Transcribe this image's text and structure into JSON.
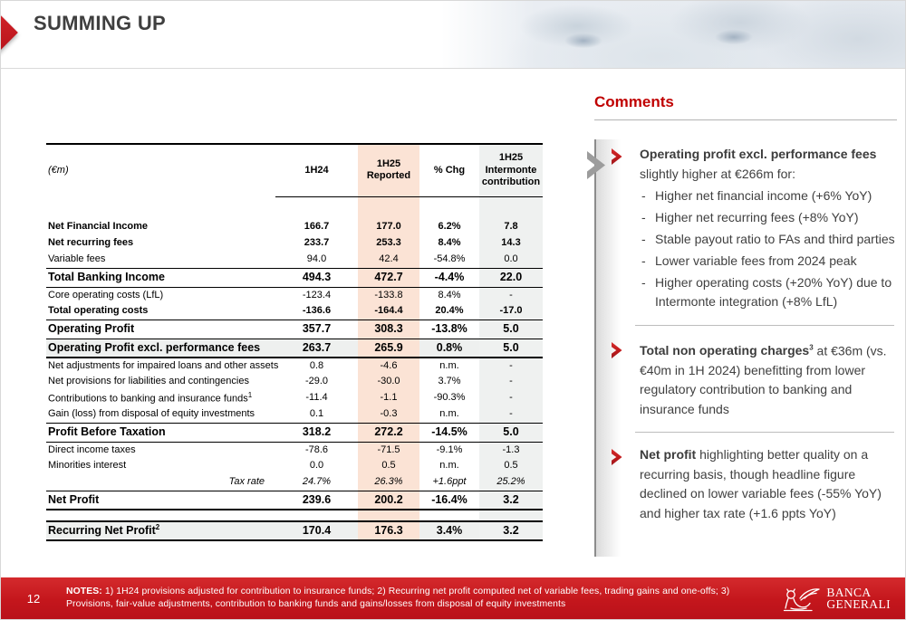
{
  "slide": {
    "title": "SUMMING UP",
    "page_number": "12"
  },
  "table": {
    "unit_label": "(€m)",
    "columns": [
      "1H24",
      "1H25 Reported",
      "% Chg",
      "1H25 Intermonte contribution"
    ],
    "rows": [
      {
        "label": "Net Financial Income",
        "values": [
          "166.7",
          "177.0",
          "6.2%",
          "7.8"
        ],
        "style": "bold"
      },
      {
        "label": "Net recurring fees",
        "values": [
          "233.7",
          "253.3",
          "8.4%",
          "14.3"
        ],
        "style": "bold"
      },
      {
        "label": "Variable fees",
        "values": [
          "94.0",
          "42.4",
          "-54.8%",
          "0.0"
        ],
        "style": ""
      },
      {
        "label": "Total Banking Income",
        "values": [
          "494.3",
          "472.7",
          "-4.4%",
          "22.0"
        ],
        "style": "big bt bb"
      },
      {
        "label": "Core operating costs (LfL)",
        "values": [
          "-123.4",
          "-133.8",
          "8.4%",
          "-"
        ],
        "style": ""
      },
      {
        "label": "Total operating costs",
        "values": [
          "-136.6",
          "-164.4",
          "20.4%",
          "-17.0"
        ],
        "style": "bold"
      },
      {
        "label": "Operating Profit",
        "values": [
          "357.7",
          "308.3",
          "-13.8%",
          "5.0"
        ],
        "style": "big bt bb"
      },
      {
        "label": "Operating Profit excl. performance fees",
        "values": [
          "263.7",
          "265.9",
          "0.8%",
          "5.0"
        ],
        "style": "big grayrow bb2"
      },
      {
        "label": "Net adjustments for impaired loans and other assets",
        "values": [
          "0.8",
          "-4.6",
          "n.m.",
          "-"
        ],
        "style": ""
      },
      {
        "label": "Net provisions for liabilities and contingencies",
        "values": [
          "-29.0",
          "-30.0",
          "3.7%",
          "-"
        ],
        "style": ""
      },
      {
        "label": "Contributions to banking and insurance funds",
        "sup": "1",
        "values": [
          "-11.4",
          "-1.1",
          "-90.3%",
          "-"
        ],
        "style": ""
      },
      {
        "label": "Gain (loss) from disposal of equity investments",
        "values": [
          "0.1",
          "-0.3",
          "n.m.",
          "-"
        ],
        "style": ""
      },
      {
        "label": "Profit Before Taxation",
        "values": [
          "318.2",
          "272.2",
          "-14.5%",
          "5.0"
        ],
        "style": "big bt bb"
      },
      {
        "label": "Direct income taxes",
        "values": [
          "-78.6",
          "-71.5",
          "-9.1%",
          "-1.3"
        ],
        "style": ""
      },
      {
        "label": "Minorities interest",
        "values": [
          "0.0",
          "0.5",
          "n.m.",
          "0.5"
        ],
        "style": ""
      },
      {
        "label": "Tax rate",
        "values": [
          "24.7%",
          "26.3%",
          "+1.6ppt",
          "25.2%"
        ],
        "style": "italic rightlbl"
      },
      {
        "label": "Net Profit",
        "values": [
          "239.6",
          "200.2",
          "-16.4%",
          "3.2"
        ],
        "style": "big bt bb2"
      },
      {
        "label": "",
        "values": [
          "",
          "",
          "",
          ""
        ],
        "style": "gap"
      },
      {
        "label": "Recurring Net Profit",
        "sup": "2",
        "values": [
          "170.4",
          "176.3",
          "3.4%",
          "3.2"
        ],
        "style": "big grayrow bt2 bb2"
      }
    ]
  },
  "comments": {
    "title": "Comments",
    "bullet_marker": "-",
    "items": [
      {
        "lead": "Operating profit excl. performance fees",
        "lead_sup": "",
        "text": " slightly higher at €266m for:",
        "bullets": [
          "Higher net financial income (+6% YoY)",
          "Higher net recurring fees (+8% YoY)",
          "Stable payout ratio to FAs and third parties",
          "Lower variable fees from 2024 peak",
          "Higher operating costs (+20% YoY) due to Intermonte integration (+8% LfL)"
        ]
      },
      {
        "lead": "Total non operating charges",
        "lead_sup": "3",
        "text": " at €36m (vs. €40m in 1H 2024) benefitting from lower regulatory contribution to banking and insurance funds",
        "bullets": []
      },
      {
        "lead": "Net profit",
        "lead_sup": "",
        "text": " highlighting better quality on a recurring basis, though headline figure declined on lower variable fees (-55% YoY) and higher tax rate (+1.6 ppts YoY)",
        "bullets": []
      }
    ]
  },
  "footer": {
    "notes_label": "NOTES:",
    "notes": " 1) 1H24 provisions adjusted for contribution to insurance funds; 2) Recurring net profit computed net of variable fees, trading gains and one-offs; 3) Provisions, fair-value adjustments, contribution to banking funds and gains/losses from disposal of equity investments",
    "logo_line1": "BANCA",
    "logo_line2": "GENERALI"
  },
  "colors": {
    "accent_red": "#c4161c",
    "comment_red": "#c00000",
    "peach_column": "#fbe3d5",
    "gray_column": "#eff1f0",
    "gray_row": "#eef0ef",
    "title_gray": "#3f3f3f"
  }
}
